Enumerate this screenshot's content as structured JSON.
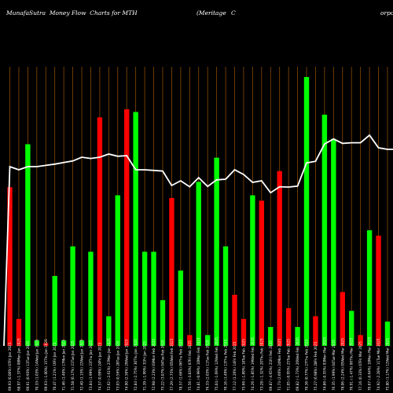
{
  "header": {
    "left": "MunafaSutra  Money Flow  Charts for MTH",
    "right_a": "(Meritage",
    "right_b": "C",
    "right_c": "orpo"
  },
  "chart_data": {
    "type": "bar",
    "title": "MunafaSutra  Money Flow  Charts for MTH (Meritage C orpo",
    "xlabel": "",
    "ylabel": "",
    "ylim": [
      0,
      100
    ],
    "grid": "vertical",
    "colors": {
      "up": "#00ff00",
      "down": "#ff0000",
      "line": "#ffffff",
      "grid": "#8a4a00",
      "background": "#000000"
    },
    "categories": [
      "69.93 (0.00%) 07Fri Jan 2025",
      "68.97 (-1.37%) 08Mon Jan 2025",
      "69.61 (0.93%) 13Tue Jan 2025",
      "70.33 (1.03%) 14Wed Jan 2025",
      "69.63 (-1.00%) 15Thu Jan 2025",
      "70.47 (1.21%) 16Fri Jan 2025",
      "71.46 (1.40%) 17Mon Jan 2025",
      "71.58 (0.17%) 21Tue Jan 2025",
      "72.40 (1.15%) 22Wed Jan 2025",
      "73.84 (1.99%) 23Thu Jan 2025",
      "74.57 (0.99%) 24Fri Jan 2025",
      "72.62 (-2.61%) 27Mon Jan 2025",
      "73.03 (0.56%) 28Tue Jan 2025",
      "74.90 (2.56%) 29Wed Jan 2025",
      "72.84 (-2.75%) 30Thu Jan 2025",
      "71.39 (-1.99%) 31Fri Jan 2025",
      "72.98 (2.23%) 03Mon Feb 2025",
      "75.22 (3.07%) 04Tue Feb 2025",
      "77.29 (2.75%) 05Wed Feb 2025",
      "78.57 (1.66%) 06Thu Feb 2025",
      "75.56 (-3.83%) 07Fri Feb 2025",
      "74.81 (-0.99%) 10Mon Feb 2025",
      "76.33 (2.03%) 11Tue Feb 2025",
      "75.04 (-1.69%) 12Wed Feb 2025",
      "76.16 (1.49%) 13Thu Feb 2025",
      "77.12 (1.26%) 14Fri Feb 2025",
      "75.66 (-1.89%) 18Tue Feb 2025",
      "74.26 (-1.85%) 19Wed Feb 2025",
      "73.28 (-1.32%) 20Thu Feb 2025",
      "69.87 (-4.65%) 21Fri Feb 2025",
      "71.73 (2.66%) 24Mon Feb 2025",
      "71.05 (-0.95%) 25Tue Feb 2025",
      "69.82 (-1.73%) 26Wed Feb 2025",
      "70.36 (0.77%) 27Thu Feb 2025",
      "75.27 (6.98%) 28Fri Feb 2025",
      "74.86 (-0.55%) 03Mon Mar 2025",
      "76.35 (1.99%) 04Tue Mar 2025",
      "78.06 (2.24%) 05Wed Mar 2025",
      "76.91 (-1.47%) 06Thu Mar 2025",
      "77.16 (0.33%) 07Fri Mar 2025",
      "76.67 (-0.64%) 10Mon Mar 2025",
      "74.92 (-2.28%) 11Tue Mar 2025",
      "75.80 (1.17%) 12Wed Mar 2025",
      "72.20 (-4.75%) 13Thu Mar 2025"
    ],
    "up": [
      false,
      false,
      true,
      true,
      false,
      true,
      true,
      true,
      true,
      true,
      false,
      true,
      true,
      false,
      true,
      true,
      true,
      true,
      false,
      true,
      false,
      true,
      true,
      true,
      true,
      false,
      false,
      true,
      false,
      true,
      false,
      false,
      true,
      true,
      false,
      true,
      true,
      false,
      true,
      false,
      true,
      false,
      true,
      false
    ],
    "values": [
      59,
      10,
      75,
      2,
      1,
      26,
      2,
      37,
      2,
      35,
      85,
      11,
      56,
      88,
      87,
      35,
      35,
      17,
      55,
      28,
      4,
      61,
      4,
      70,
      37,
      19,
      10,
      56,
      54,
      7,
      65,
      14,
      7,
      100,
      11,
      86,
      77,
      20,
      13,
      4,
      43,
      41,
      9,
      73
    ],
    "line": [
      69,
      68,
      69,
      69,
      69.4,
      69.8,
      70.3,
      70.8,
      72,
      71.6,
      72,
      73,
      72.3,
      72.5,
      68,
      68,
      67.8,
      67.6,
      63,
      64.5,
      62.6,
      65.5,
      62.7,
      64.8,
      65,
      68,
      66.5,
      64,
      64.5,
      60.7,
      62.6,
      62.5,
      62.8,
      70.2,
      70.7,
      76.2,
      77.8,
      76.4,
      76.6,
      76.6,
      79,
      75,
      74.5,
      74.5
    ]
  }
}
